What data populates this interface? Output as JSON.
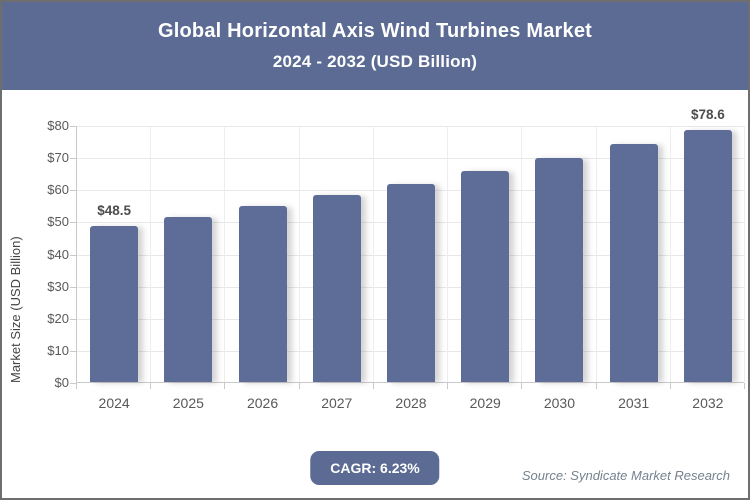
{
  "header": {
    "title_line1": "Global Horizontal Axis Wind Turbines Market",
    "title_line2": "2024 - 2032 (USD Billion)"
  },
  "chart_data": {
    "type": "bar",
    "title": "Global Horizontal Axis Wind Turbines Market 2024 - 2032 (USD Billion)",
    "categories": [
      "2024",
      "2025",
      "2026",
      "2027",
      "2028",
      "2029",
      "2030",
      "2031",
      "2032"
    ],
    "values": [
      48.5,
      51.5,
      54.7,
      58.1,
      61.7,
      65.6,
      69.7,
      74.0,
      78.6
    ],
    "labeled_points": [
      {
        "index": 0,
        "label": "$48.5"
      },
      {
        "index": 8,
        "label": "$78.6"
      }
    ],
    "xlabel": "",
    "ylabel": "Market Size (USD Billion)",
    "ylim": [
      0,
      80
    ],
    "ytick_step": 10,
    "ytick_labels": [
      "$0",
      "$10",
      "$20",
      "$30",
      "$40",
      "$50",
      "$60",
      "$70",
      "$80"
    ],
    "grid": true,
    "legend": "none",
    "bar_color": "#5e6d97"
  },
  "footer": {
    "cagr_label": "CAGR: 6.23%",
    "source": "Source: Syndicate Market Research"
  },
  "colors": {
    "header_background": "#5b6b93",
    "bar": "#5e6d97",
    "badge_background": "#5b6b93",
    "axis_text": "#595959",
    "source_text": "#76828f",
    "gridline": "#e8e8e8",
    "frame_border": "#6e6e6e"
  }
}
